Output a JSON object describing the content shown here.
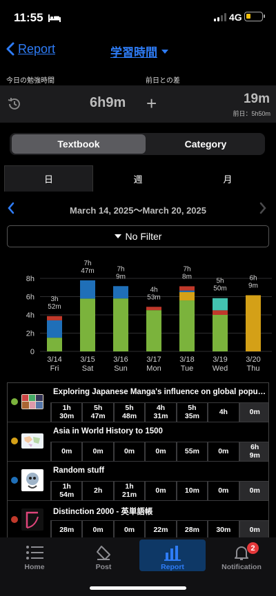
{
  "status": {
    "time": "11:55",
    "network": "4G"
  },
  "nav": {
    "back_label": "Report",
    "title": "学習時間"
  },
  "summary": {
    "today_label": "今日の勉強時間",
    "diff_label": "前日との差",
    "today_value": "6h9m",
    "diff_sign": "+",
    "diff_value": "19m",
    "prev_value": "前日：5h50m"
  },
  "segmented": {
    "selected": "Textbook",
    "other": "Category"
  },
  "period_tabs": [
    "日",
    "週",
    "月"
  ],
  "date_range": "March 14, 2025～March 20, 2025",
  "filter_label": "No Filter",
  "chart_data": {
    "type": "bar",
    "stacked": true,
    "ylabel": "",
    "ylim": [
      0,
      8
    ],
    "yticks": [
      "0",
      "2h",
      "4h",
      "6h",
      "8h"
    ],
    "categories": [
      "3/14\nFri",
      "3/15\nSat",
      "3/16\nSun",
      "3/17\nMon",
      "3/18\nTue",
      "3/19\nWed",
      "3/20\nThu"
    ],
    "day_labels": [
      "3/14",
      "3/15",
      "3/16",
      "3/17",
      "3/18",
      "3/19",
      "3/20"
    ],
    "weekday_labels": [
      "Fri",
      "Sat",
      "Sun",
      "Mon",
      "Tue",
      "Wed",
      "Thu"
    ],
    "total_labels": [
      "3h\n52m",
      "7h\n47m",
      "7h\n9m",
      "4h\n53m",
      "7h\n8m",
      "5h\n50m",
      "6h\n9m"
    ],
    "series": [
      {
        "name": "Exploring Japanese Manga's influence on global popular culture",
        "color": "#7bb33c",
        "values": [
          1.5,
          5.783,
          5.8,
          4.517,
          5.583,
          4.0,
          0
        ]
      },
      {
        "name": "Asia in World History to 1500",
        "color": "#d4a017",
        "values": [
          0,
          0,
          0,
          0,
          0.917,
          0,
          6.15
        ]
      },
      {
        "name": "Random stuff",
        "color": "#1f6fb8",
        "values": [
          1.9,
          2.0,
          1.35,
          0,
          0.167,
          0,
          0
        ]
      },
      {
        "name": "Distinction 2000 - 英単語帳",
        "color": "#c0392b",
        "values": [
          0.467,
          0,
          0,
          0.367,
          0.467,
          0.5,
          0
        ]
      },
      {
        "name": "",
        "color": "#43c3b0",
        "values": [
          0,
          0,
          0,
          0,
          0,
          1.333,
          0
        ]
      }
    ]
  },
  "table": [
    {
      "name": "Exploring Japanese Manga's influence on global popular culture",
      "color": "#7bb33c",
      "thumb": "manga",
      "cells": [
        "1h\n30m",
        "5h\n47m",
        "5h\n48m",
        "4h\n31m",
        "5h\n35m",
        "4h",
        "0m"
      ]
    },
    {
      "name": "Asia in World History to 1500",
      "color": "#d4a017",
      "thumb": "map",
      "cells": [
        "0m",
        "0m",
        "0m",
        "0m",
        "55m",
        "0m",
        "6h\n9m"
      ]
    },
    {
      "name": "Random stuff",
      "color": "#1f6fb8",
      "thumb": "character",
      "cells": [
        "1h\n54m",
        "2h",
        "1h\n21m",
        "0m",
        "10m",
        "0m",
        "0m"
      ]
    },
    {
      "name": "Distinction 2000 - 英単語帳",
      "color": "#c0392b",
      "thumb": "book",
      "cells": [
        "28m",
        "0m",
        "0m",
        "22m",
        "28m",
        "30m",
        "0m"
      ]
    }
  ],
  "tabbar": {
    "items": [
      {
        "label": "Home",
        "icon": "list-icon"
      },
      {
        "label": "Post",
        "icon": "eraser-icon"
      },
      {
        "label": "Report",
        "icon": "bar-chart-icon"
      },
      {
        "label": "Notification",
        "icon": "bell-icon"
      }
    ],
    "badge": "2",
    "active": "Report"
  }
}
